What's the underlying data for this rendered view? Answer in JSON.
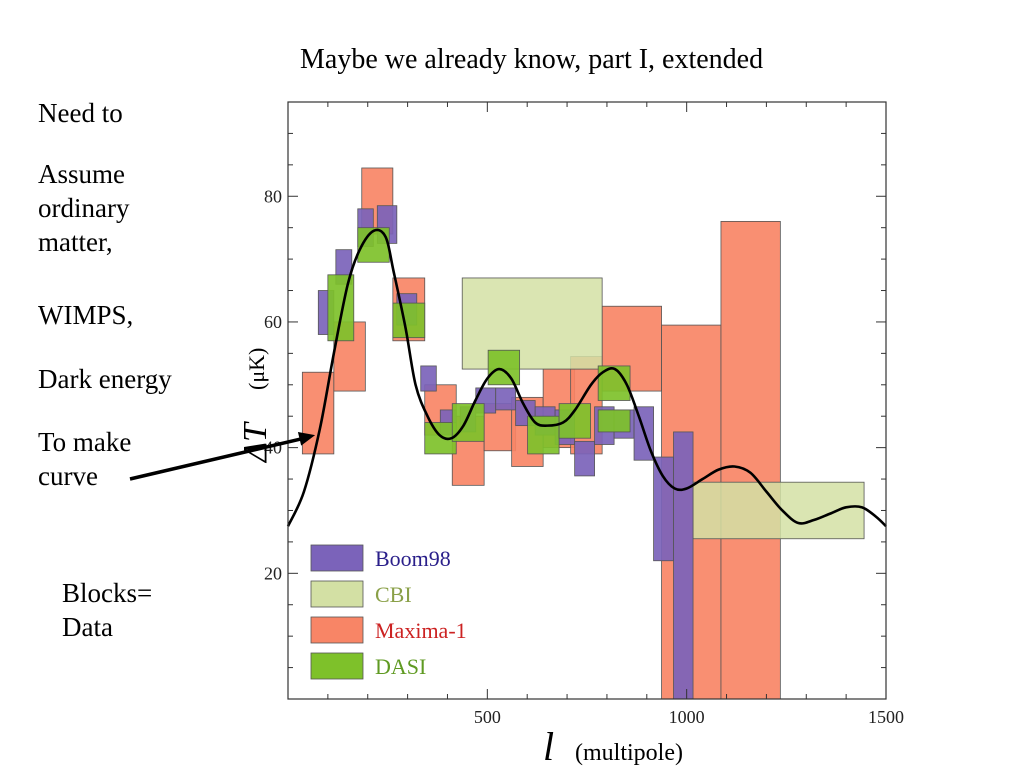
{
  "slide": {
    "title": "Maybe we already know, part I, extended",
    "notes": [
      "Need to",
      "Assume\nordinary\nmatter,",
      "WIMPS,",
      "Dark energy",
      "To make\ncurve",
      "Blocks=\nData"
    ]
  },
  "chart_data": {
    "type": "box-error-plot",
    "title": "",
    "xlabel_symbol": "l",
    "xlabel": "(multipole)",
    "ylabel_symbol": "ΔT",
    "ylabel": "(μK)",
    "xlim": [
      0,
      1500
    ],
    "ylim": [
      0,
      95
    ],
    "x_ticks": [
      500,
      1000,
      1500
    ],
    "y_ticks": [
      20,
      40,
      60,
      80
    ],
    "legend_position": "bottom-left",
    "series": [
      {
        "name": "Maxima-1",
        "color": "#f88566",
        "label_color": "#cc2222",
        "order": 1,
        "blocks": [
          {
            "x0": 36,
            "x1": 115,
            "y0": 39,
            "y1": 52
          },
          {
            "x0": 115,
            "x1": 194,
            "y0": 49,
            "y1": 60
          },
          {
            "x0": 185,
            "x1": 263,
            "y0": 74,
            "y1": 84.5
          },
          {
            "x0": 263,
            "x1": 343,
            "y0": 57,
            "y1": 67
          },
          {
            "x0": 343,
            "x1": 422,
            "y0": 42,
            "y1": 50
          },
          {
            "x0": 412,
            "x1": 492,
            "y0": 34,
            "y1": 45
          },
          {
            "x0": 492,
            "x1": 571,
            "y0": 39.5,
            "y1": 47
          },
          {
            "x0": 561,
            "x1": 640,
            "y0": 37,
            "y1": 48
          },
          {
            "x0": 640,
            "x1": 719,
            "y0": 40,
            "y1": 52.5
          },
          {
            "x0": 709,
            "x1": 788,
            "y0": 39,
            "y1": 54.5
          },
          {
            "x0": 788,
            "x1": 937,
            "y0": 49,
            "y1": 62.5
          },
          {
            "x0": 937,
            "x1": 1086,
            "y0": 0,
            "y1": 59.5
          },
          {
            "x0": 1086,
            "x1": 1235,
            "y0": 0,
            "y1": 76
          }
        ]
      },
      {
        "name": "CBI",
        "color": "#d3e0a4",
        "label_color": "#8aa048",
        "order": 2,
        "blocks": [
          {
            "x0": 437,
            "x1": 788,
            "y0": 52.5,
            "y1": 67
          },
          {
            "x0": 1016,
            "x1": 1445,
            "y0": 25.5,
            "y1": 34.5
          }
        ]
      },
      {
        "name": "Boom98",
        "color": "#7b63ba",
        "label_color": "#2a1f8a",
        "order": 0,
        "blocks": [
          {
            "x0": 76,
            "x1": 115,
            "y0": 58,
            "y1": 65
          },
          {
            "x0": 120,
            "x1": 160,
            "y0": 66,
            "y1": 71.5
          },
          {
            "x0": 175,
            "x1": 214,
            "y0": 72,
            "y1": 78
          },
          {
            "x0": 224,
            "x1": 273,
            "y0": 72.5,
            "y1": 78.5
          },
          {
            "x0": 273,
            "x1": 323,
            "y0": 59.5,
            "y1": 64.5
          },
          {
            "x0": 333,
            "x1": 372,
            "y0": 49,
            "y1": 53
          },
          {
            "x0": 382,
            "x1": 422,
            "y0": 42,
            "y1": 46
          },
          {
            "x0": 432,
            "x1": 471,
            "y0": 42.5,
            "y1": 46.5
          },
          {
            "x0": 471,
            "x1": 521,
            "y0": 45.5,
            "y1": 49.5
          },
          {
            "x0": 521,
            "x1": 571,
            "y0": 46,
            "y1": 49.5
          },
          {
            "x0": 571,
            "x1": 620,
            "y0": 43.5,
            "y1": 47.5
          },
          {
            "x0": 620,
            "x1": 670,
            "y0": 42,
            "y1": 46.5
          },
          {
            "x0": 670,
            "x1": 719,
            "y0": 40.5,
            "y1": 46
          },
          {
            "x0": 719,
            "x1": 769,
            "y0": 35.5,
            "y1": 41
          },
          {
            "x0": 769,
            "x1": 818,
            "y0": 40.5,
            "y1": 46.5
          },
          {
            "x0": 818,
            "x1": 868,
            "y0": 41.5,
            "y1": 46
          },
          {
            "x0": 868,
            "x1": 917,
            "y0": 38,
            "y1": 46.5
          },
          {
            "x0": 917,
            "x1": 967,
            "y0": 22,
            "y1": 38.5
          },
          {
            "x0": 967,
            "x1": 1016,
            "y0": 0,
            "y1": 42.5
          }
        ]
      },
      {
        "name": "DASI",
        "color": "#7ec12a",
        "label_color": "#5f9a22",
        "order": 3,
        "blocks": [
          {
            "x0": 100,
            "x1": 165,
            "y0": 57,
            "y1": 67.5
          },
          {
            "x0": 175,
            "x1": 254,
            "y0": 69.5,
            "y1": 75
          },
          {
            "x0": 263,
            "x1": 343,
            "y0": 57.5,
            "y1": 63
          },
          {
            "x0": 343,
            "x1": 422,
            "y0": 39,
            "y1": 44
          },
          {
            "x0": 412,
            "x1": 492,
            "y0": 41,
            "y1": 47
          },
          {
            "x0": 502,
            "x1": 581,
            "y0": 50,
            "y1": 55.5
          },
          {
            "x0": 601,
            "x1": 680,
            "y0": 39,
            "y1": 45
          },
          {
            "x0": 680,
            "x1": 759,
            "y0": 41.5,
            "y1": 47
          },
          {
            "x0": 778,
            "x1": 858,
            "y0": 47.5,
            "y1": 53
          },
          {
            "x0": 778,
            "x1": 858,
            "y0": 42.5,
            "y1": 46
          }
        ]
      }
    ],
    "model_curve": {
      "color": "#000000",
      "points": [
        [
          0,
          27.5
        ],
        [
          40,
          33
        ],
        [
          80,
          43
        ],
        [
          115,
          55
        ],
        [
          150,
          66
        ],
        [
          180,
          71.5
        ],
        [
          215,
          74.5
        ],
        [
          245,
          73.5
        ],
        [
          265,
          68
        ],
        [
          295,
          59
        ],
        [
          320,
          50
        ],
        [
          350,
          45
        ],
        [
          380,
          42
        ],
        [
          410,
          41.5
        ],
        [
          440,
          43.5
        ],
        [
          470,
          47.5
        ],
        [
          500,
          51
        ],
        [
          530,
          52.5
        ],
        [
          560,
          51
        ],
        [
          590,
          47
        ],
        [
          620,
          44
        ],
        [
          650,
          43.5
        ],
        [
          690,
          44
        ],
        [
          720,
          46
        ],
        [
          760,
          50
        ],
        [
          790,
          52
        ],
        [
          820,
          52.5
        ],
        [
          850,
          50
        ],
        [
          880,
          45
        ],
        [
          910,
          39.5
        ],
        [
          940,
          35.5
        ],
        [
          970,
          33.5
        ],
        [
          1000,
          33.5
        ],
        [
          1040,
          35
        ],
        [
          1080,
          36.5
        ],
        [
          1120,
          37
        ],
        [
          1160,
          36
        ],
        [
          1200,
          33
        ],
        [
          1240,
          30
        ],
        [
          1280,
          28
        ],
        [
          1320,
          28.5
        ],
        [
          1360,
          29.5
        ],
        [
          1400,
          30.5
        ],
        [
          1440,
          30.5
        ],
        [
          1475,
          29
        ],
        [
          1500,
          27.5
        ]
      ]
    },
    "pointer_arrow": {
      "from_label": "To make curve",
      "target": [
        68,
        42
      ]
    }
  }
}
